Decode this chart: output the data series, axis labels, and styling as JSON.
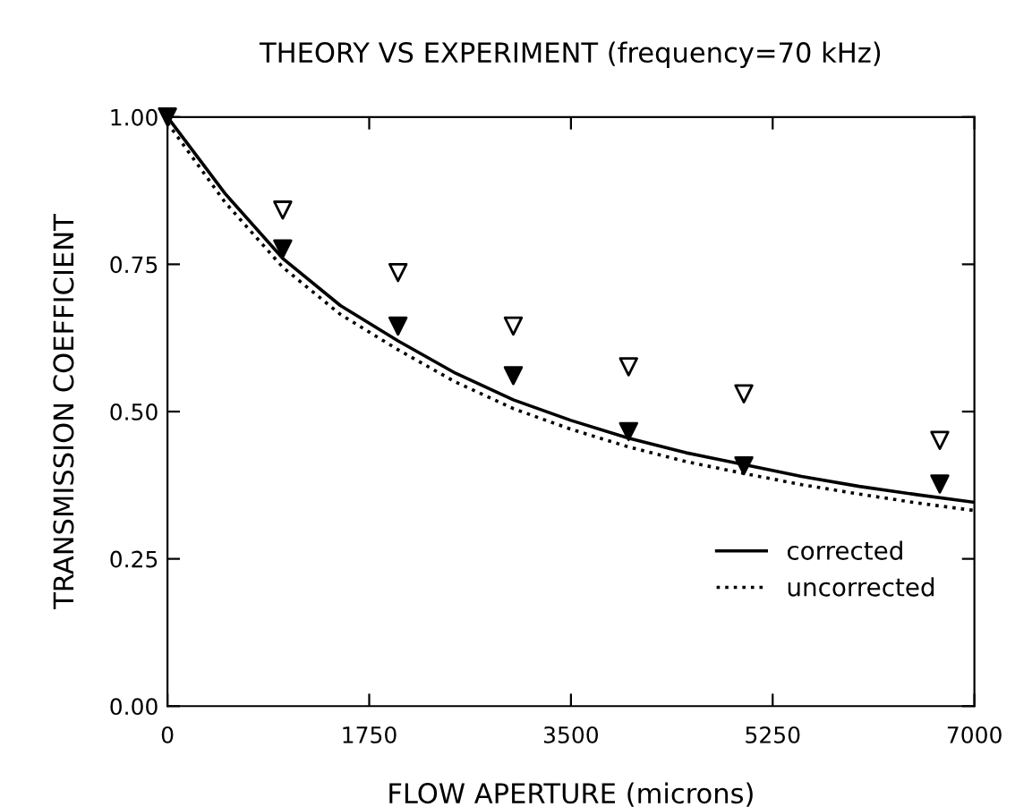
{
  "chart_data": {
    "type": "line",
    "title": "THEORY VS EXPERIMENT (frequency=70 kHz)",
    "xlabel": "FLOW APERTURE (microns)",
    "ylabel": "TRANSMISSION COEFFICIENT",
    "xlim": [
      0,
      7000
    ],
    "xticks": [
      0,
      1750,
      3500,
      5250,
      7000
    ],
    "ylim": [
      0,
      1
    ],
    "yticks": [
      {
        "value": 0,
        "label": "0.00"
      },
      {
        "value": 0.25,
        "label": "0.25"
      },
      {
        "value": 0.5,
        "label": "0.50"
      },
      {
        "value": 0.75,
        "label": "0.75"
      },
      {
        "value": 1,
        "label": "1.00"
      }
    ],
    "grid": false,
    "legend": "bottom right",
    "series": [
      {
        "name": "corrected",
        "color": "#000000",
        "line_style": "solid",
        "marker": "none",
        "x": [
          0,
          500,
          1000,
          1500,
          2000,
          2500,
          3000,
          3500,
          4000,
          4500,
          5000,
          5500,
          6000,
          6500,
          7000
        ],
        "values": [
          1.0,
          0.87,
          0.76,
          0.68,
          0.62,
          0.565,
          0.52,
          0.485,
          0.455,
          0.43,
          0.41,
          0.39,
          0.373,
          0.359,
          0.346
        ]
      },
      {
        "name": "uncorrected",
        "color": "#000000",
        "line_style": "dotted",
        "marker": "none",
        "x": [
          0,
          500,
          1000,
          1500,
          2000,
          2500,
          3000,
          3500,
          4000,
          4500,
          5000,
          5500,
          6000,
          6500,
          7000
        ],
        "values": [
          0.99,
          0.855,
          0.745,
          0.665,
          0.605,
          0.55,
          0.505,
          0.47,
          0.44,
          0.415,
          0.395,
          0.376,
          0.36,
          0.345,
          0.332
        ]
      },
      {
        "type": "scatter",
        "color": "#000000",
        "marker": "triangle",
        "x": [
          0,
          1000,
          2000,
          3000,
          4000,
          5000,
          6700
        ],
        "values": [
          1.0,
          0.776,
          0.645,
          0.561,
          0.466,
          0.408,
          0.377
        ]
      },
      {
        "type": "scatter",
        "color": "#000000",
        "marker": "triangle",
        "x": [
          1000,
          2000,
          3000,
          4000,
          5000,
          6700
        ],
        "values": [
          0.842,
          0.736,
          0.645,
          0.576,
          0.53,
          0.451
        ]
      }
    ]
  }
}
